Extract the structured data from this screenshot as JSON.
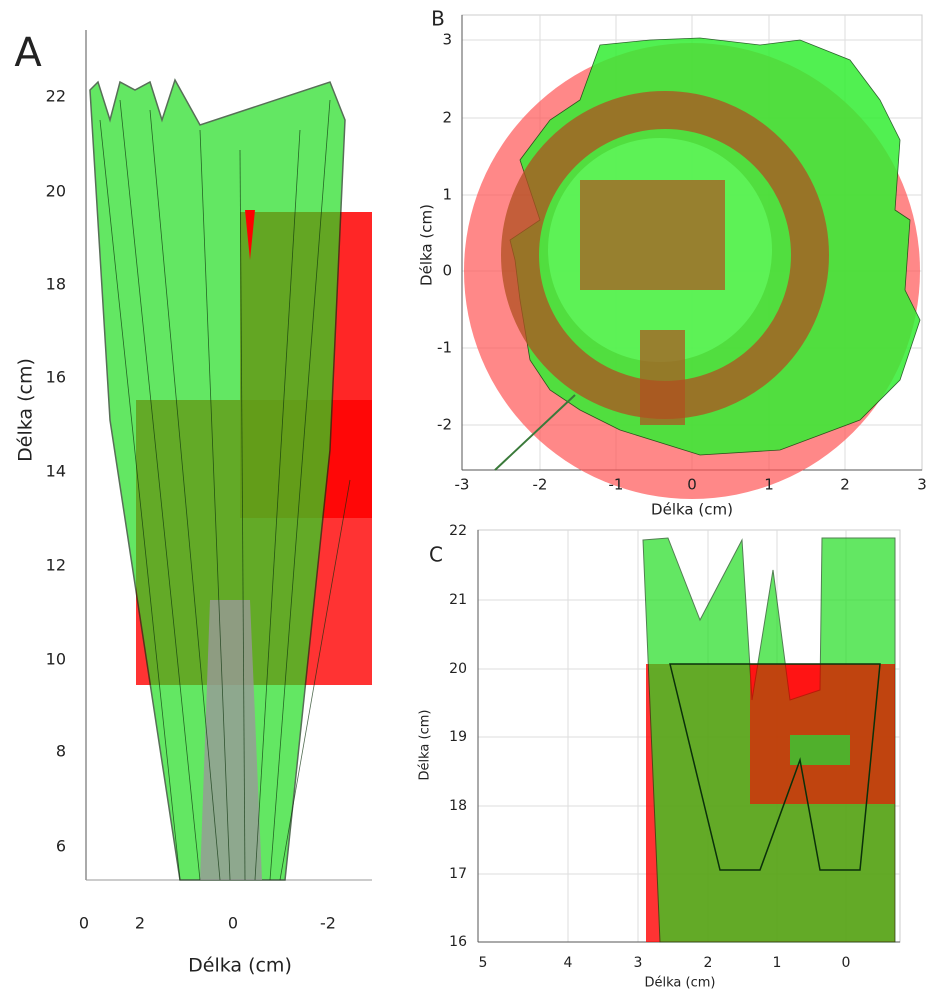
{
  "panels": [
    {
      "label": "A",
      "x_label": "Délka (cm)",
      "y_label": "Délka (cm)",
      "x_ticks": [
        "0",
        "2",
        "0",
        "-2"
      ],
      "y_ticks": [
        "22",
        "20",
        "18",
        "16",
        "14",
        "12",
        "10",
        "8",
        "6"
      ]
    },
    {
      "label": "B",
      "x_label": "Délka (cm)",
      "y_label": "Délka (cm)",
      "x_ticks": [
        "-3",
        "-2",
        "-1",
        "0",
        "1",
        "2",
        "3"
      ],
      "y_ticks": [
        "3",
        "2",
        "1",
        "0",
        "-1",
        "-2"
      ]
    },
    {
      "label": "C",
      "x_label": "Délka (cm)",
      "y_label": "Délka (cm)",
      "x_ticks": [
        "5",
        "4",
        "3",
        "2",
        "1",
        "0"
      ],
      "y_ticks": [
        "22",
        "21",
        "20",
        "19",
        "18",
        "17",
        "16"
      ]
    }
  ]
}
